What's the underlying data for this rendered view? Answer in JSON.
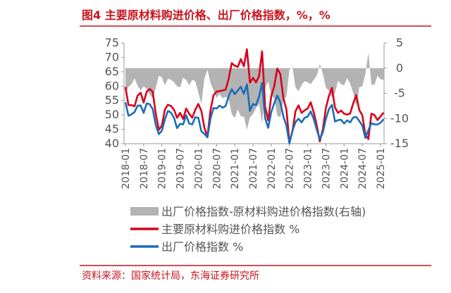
{
  "chart_data": {
    "type": "line",
    "title": "图4  主要原材料购进价格、出厂价格指数，%，%",
    "source": "资料来源：国家统计局，东海证券研究所",
    "categories": [
      "2018-01",
      null,
      null,
      null,
      null,
      null,
      "2018-07",
      null,
      null,
      null,
      null,
      null,
      "2019-01",
      null,
      null,
      null,
      null,
      null,
      "2019-07",
      null,
      null,
      null,
      null,
      null,
      "2020-01",
      null,
      null,
      null,
      null,
      null,
      "2020-07",
      null,
      null,
      null,
      null,
      null,
      "2021-01",
      null,
      null,
      null,
      null,
      null,
      "2021-07",
      null,
      null,
      null,
      null,
      null,
      "2022-01",
      null,
      null,
      null,
      null,
      null,
      "2022-07",
      null,
      null,
      null,
      null,
      null,
      "2023-01",
      null,
      null,
      null,
      null,
      null,
      "2023-07",
      null,
      null,
      null,
      null,
      null,
      "2024-01",
      null,
      null,
      null,
      null,
      null,
      "2024-07",
      null,
      null,
      null,
      null,
      null,
      "2025-01",
      null
    ],
    "ylim": [
      40,
      75
    ],
    "yticks": [
      40,
      45,
      50,
      55,
      60,
      65,
      70,
      75
    ],
    "y2lim": [
      -15,
      5
    ],
    "y2ticks": [
      -15,
      -10,
      -5,
      0,
      5
    ],
    "series": [
      {
        "name": "出厂价格指数-原材料购进价格指数(右轴)",
        "type": "area",
        "axis": "y2",
        "color": "#b3b3b3",
        "values": [
          -5.3,
          -3.7,
          -3.2,
          -2.0,
          -3.5,
          -4.4,
          -3.6,
          -4.1,
          -5.3,
          -6.0,
          -3.9,
          -1.5,
          -1.8,
          -3.4,
          -2.1,
          -2.3,
          -2.8,
          -3.6,
          -3.8,
          -1.9,
          -2.3,
          -3.4,
          -2.3,
          -2.6,
          -4.8,
          -7.1,
          -2.1,
          -0.3,
          -2.9,
          -4.4,
          -5.9,
          -5.1,
          -6.0,
          -5.7,
          -6.1,
          -9.1,
          -9.9,
          -8.2,
          -9.6,
          -9.6,
          -12.2,
          -9.8,
          -9.1,
          -7.9,
          -7.1,
          -11.0,
          -4.0,
          -2.6,
          -5.5,
          -5.9,
          -9.4,
          -9.8,
          -6.3,
          -5.7,
          -0.3,
          0.2,
          -3.8,
          -4.6,
          -3.3,
          -2.6,
          -2.8,
          -3.2,
          -2.3,
          -1.5,
          0.8,
          -1.1,
          -3.8,
          -4.5,
          -5.9,
          -4.9,
          -2.5,
          -3.2,
          -3.4,
          -2.0,
          -3.1,
          -4.9,
          -7.6,
          -3.8,
          -3.6,
          -1.2,
          3.1,
          -3.3,
          -3.3,
          -1.5,
          -2.2,
          -2.3
        ]
      },
      {
        "name": "主要原材料购进价格指数 %",
        "type": "line",
        "color": "#d9001b",
        "values": [
          59.7,
          53.4,
          53.4,
          53.0,
          56.7,
          57.7,
          54.3,
          58.1,
          59.0,
          58.0,
          50.3,
          44.8,
          46.3,
          51.9,
          53.5,
          53.1,
          51.8,
          49.0,
          50.7,
          48.6,
          52.2,
          50.4,
          49.0,
          51.8,
          53.8,
          51.4,
          45.5,
          42.5,
          51.6,
          56.8,
          58.1,
          58.3,
          58.5,
          58.8,
          62.6,
          68.0,
          67.1,
          66.7,
          69.4,
          66.9,
          72.8,
          61.2,
          62.9,
          61.3,
          63.5,
          72.1,
          52.9,
          48.1,
          56.4,
          60.0,
          66.1,
          64.2,
          55.8,
          52.0,
          40.4,
          44.3,
          51.3,
          53.3,
          50.7,
          51.6,
          52.2,
          54.4,
          50.9,
          46.4,
          40.8,
          45.0,
          52.4,
          56.5,
          59.4,
          52.6,
          50.7,
          51.5,
          50.4,
          50.1,
          50.5,
          54.0,
          56.9,
          51.7,
          49.9,
          43.2,
          41.6,
          50.4,
          50.0,
          48.2,
          49.5,
          50.8
        ]
      },
      {
        "name": "出厂价格指数 %",
        "type": "line",
        "color": "#1a6db8",
        "values": [
          54.4,
          49.7,
          50.2,
          51.0,
          53.2,
          53.3,
          50.7,
          54.0,
          53.7,
          52.0,
          46.4,
          43.3,
          44.5,
          48.5,
          51.4,
          50.8,
          49.0,
          45.4,
          46.9,
          46.7,
          49.9,
          47.0,
          46.7,
          49.2,
          49.0,
          44.3,
          43.4,
          42.2,
          48.7,
          52.4,
          52.2,
          53.2,
          52.5,
          53.1,
          56.5,
          58.9,
          57.2,
          58.5,
          59.8,
          57.3,
          60.6,
          51.4,
          53.8,
          53.4,
          56.4,
          61.1,
          48.9,
          45.5,
          50.9,
          54.1,
          56.7,
          54.4,
          49.5,
          46.3,
          40.1,
          44.5,
          47.5,
          48.7,
          47.4,
          49.0,
          49.4,
          51.2,
          48.6,
          44.9,
          41.6,
          43.9,
          48.6,
          52.0,
          53.5,
          47.7,
          48.2,
          48.3,
          47.0,
          48.1,
          47.4,
          49.1,
          49.3,
          47.9,
          46.3,
          42.0,
          44.7,
          47.1,
          46.7,
          46.7,
          47.3,
          48.5
        ]
      }
    ]
  }
}
